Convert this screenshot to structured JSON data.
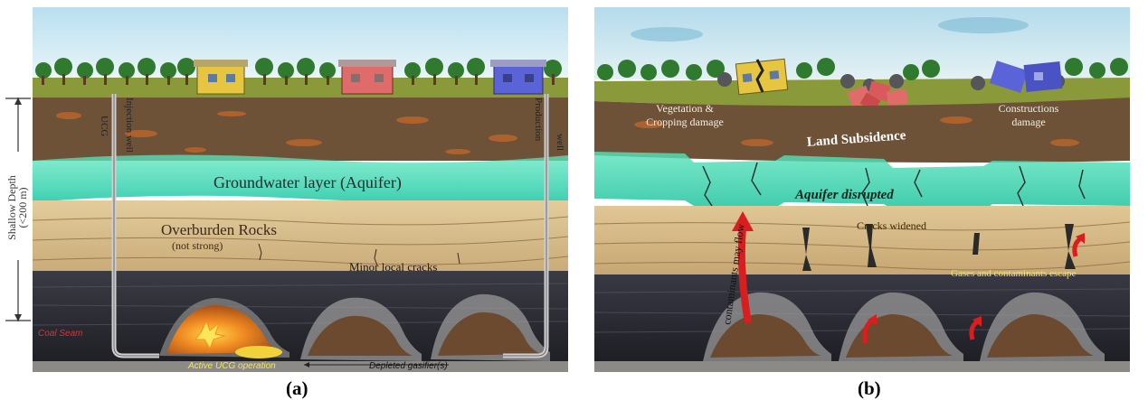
{
  "panel_a": {
    "caption": "(a)",
    "depth_label_line1": "Shallow Depth",
    "depth_label_line2": "(<200 m)",
    "ucg_label": "UCG",
    "injection_well_label": "Injection well",
    "production_label": "Production",
    "well_label": "well",
    "aquifer_label": "Groundwater layer (Aquifer)",
    "overburden_label": "Overburden Rocks",
    "overburden_sub_label": "(not strong)",
    "cracks_label": "Minor local cracks",
    "coal_seam_label": "Coal  Seam",
    "active_label": "Active UCG operation",
    "depleted_label": "Depleted gasifier(s)"
  },
  "panel_b": {
    "caption": "(b)",
    "vegetation_label_line1": "Vegetation &",
    "vegetation_label_line2": "Cropping damage",
    "subsidence_label": "Land Subsidence",
    "constructions_label_line1": "Constructions",
    "constructions_label_line2": "damage",
    "aquifer_disrupted_label": "Aquifer disrupted",
    "contaminants_flow_label": "contaminants may flow",
    "cracks_widened_label": "Cracks  widened",
    "gases_escape_label": "Gases and contaminants escape"
  },
  "colors": {
    "sky": "#cfe8f2",
    "grass": "#7a8d2c",
    "soil": "#6e5238",
    "aquifer": "#3fd9b0",
    "rock": "#d9c08f",
    "coal": "#2a2a30",
    "arrow_red": "#d81e1e",
    "yellow_text": "#f2e85a"
  }
}
